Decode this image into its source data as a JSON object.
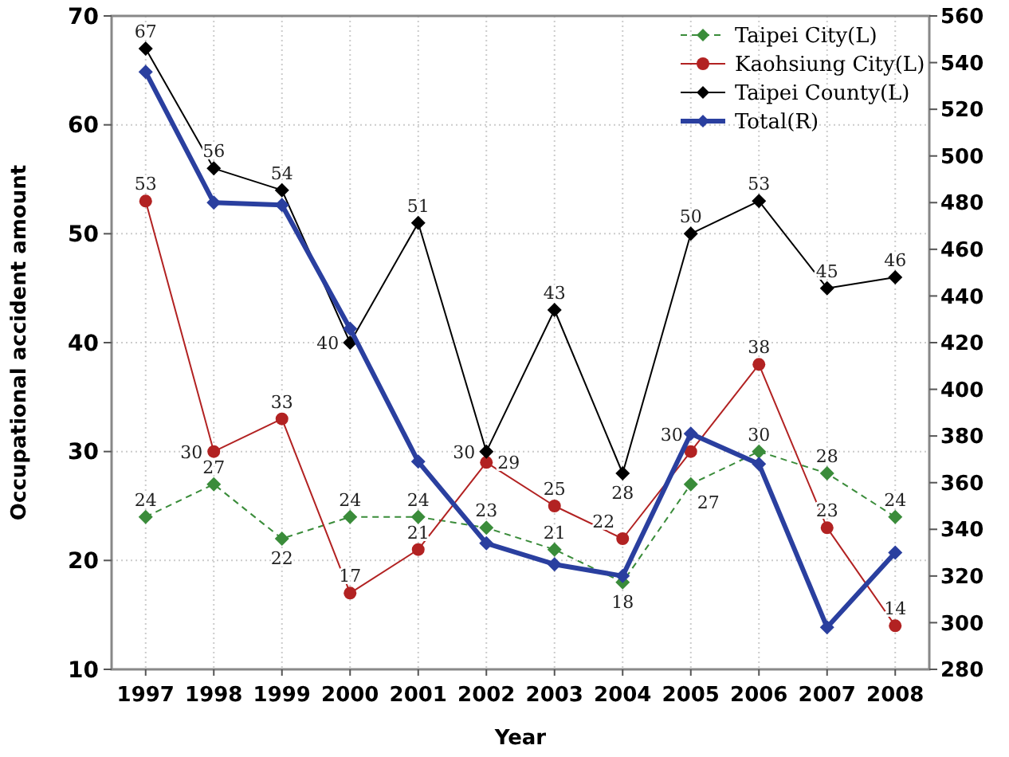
{
  "chart_data": {
    "type": "line",
    "xlabel": "Year",
    "ylabel": "Occupational accident amount",
    "categories": [
      "1997",
      "1998",
      "1999",
      "2000",
      "2001",
      "2002",
      "2003",
      "2004",
      "2005",
      "2006",
      "2007",
      "2008"
    ],
    "series": [
      {
        "name": "Taipei City(L)",
        "color": "#3a8c3a",
        "marker": "diamond",
        "line_style": "dashed",
        "values": [
          24,
          27,
          22,
          24,
          24,
          23,
          21,
          18,
          27,
          30,
          28,
          24
        ],
        "value_labels": [
          "24",
          "27",
          "22",
          "24",
          "24",
          "23",
          "21",
          "18",
          "27",
          "30",
          "28",
          "24"
        ]
      },
      {
        "name": "Kaohsiung City(L)",
        "color": "#b22222",
        "marker": "circle",
        "line_style": "solid",
        "values": [
          53,
          30,
          33,
          17,
          21,
          29,
          25,
          22,
          30,
          38,
          23,
          14
        ],
        "value_labels": [
          "53",
          "30",
          "33",
          "17",
          "21",
          "29",
          "25",
          "22",
          "30",
          "38",
          "23",
          "14"
        ]
      },
      {
        "name": "Taipei County(L)",
        "color": "#000000",
        "marker": "diamond",
        "line_style": "solid",
        "values": [
          67,
          56,
          54,
          40,
          51,
          30,
          43,
          28,
          50,
          53,
          45,
          46
        ],
        "value_labels": [
          "67",
          "56",
          "54",
          "40",
          "51",
          "30",
          "43",
          "28",
          "50",
          "53",
          "45",
          "46"
        ]
      },
      {
        "name": "Total(R)",
        "color": "#2a3f9f",
        "marker": "diamond",
        "line_style": "solid",
        "axis": "y2",
        "values": [
          536,
          480,
          479,
          426,
          369,
          334,
          325,
          320,
          381,
          368,
          298,
          330
        ]
      }
    ],
    "ylim": [
      10,
      70
    ],
    "yticks": [
      10,
      20,
      30,
      40,
      50,
      60,
      70
    ],
    "y2lim": [
      280,
      560
    ],
    "y2ticks": [
      280,
      300,
      320,
      340,
      360,
      380,
      400,
      420,
      440,
      460,
      480,
      500,
      520,
      540,
      560
    ],
    "grid": true,
    "legend": "top right"
  }
}
